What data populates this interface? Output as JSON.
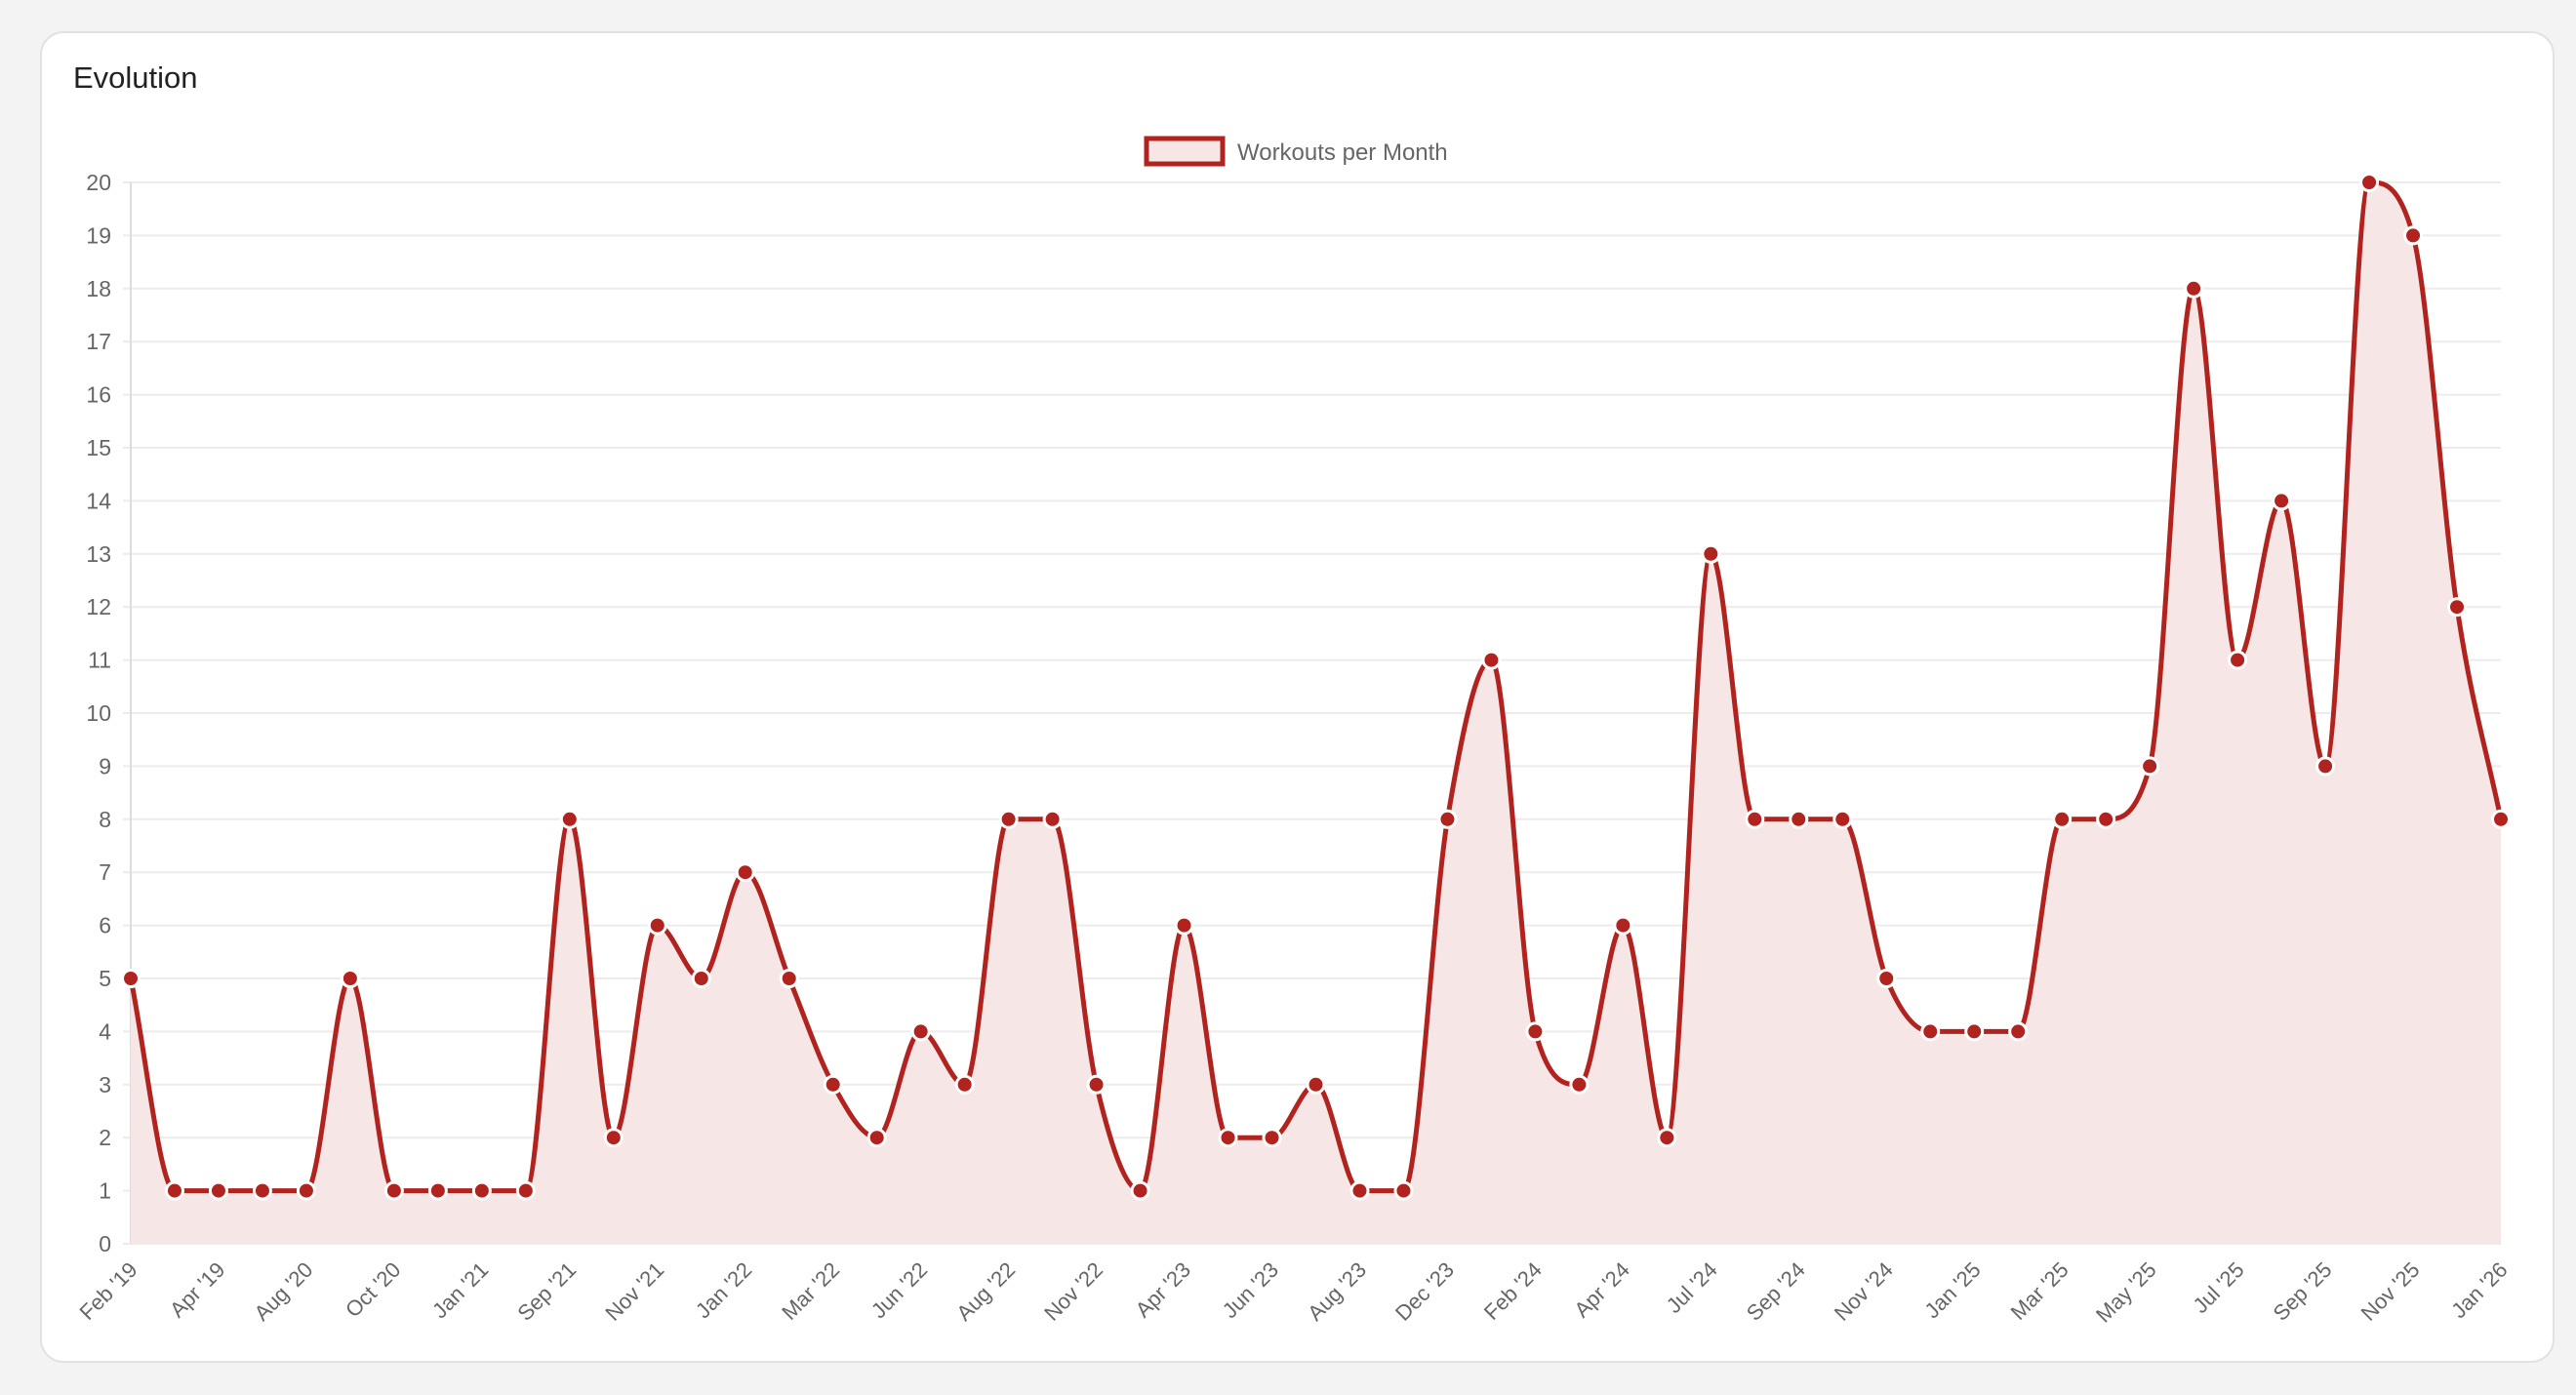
{
  "card": {
    "title": "Evolution"
  },
  "colors": {
    "line": "#b0231e",
    "fill": "#f7e6e6",
    "grid": "#ececec",
    "point_border": "#ffffff",
    "axis_text": "#666666"
  },
  "chart_data": {
    "type": "line",
    "title": "",
    "xlabel": "",
    "ylabel": "",
    "ylim": [
      0,
      20
    ],
    "legend": "top-center",
    "grid": true,
    "series": [
      {
        "name": "Workouts per Month",
        "values": [
          5,
          1,
          1,
          1,
          1,
          5,
          1,
          1,
          1,
          1,
          8,
          2,
          6,
          5,
          7,
          5,
          3,
          2,
          4,
          3,
          8,
          8,
          3,
          1,
          6,
          2,
          2,
          3,
          1,
          1,
          8,
          11,
          4,
          3,
          6,
          2,
          13,
          8,
          8,
          8,
          5,
          4,
          4,
          4,
          8,
          8,
          9,
          18,
          11,
          14,
          9,
          20,
          19,
          12,
          8
        ]
      }
    ],
    "y_ticks": [
      "0",
      "1",
      "2",
      "3",
      "4",
      "5",
      "6",
      "7",
      "8",
      "9",
      "10",
      "11",
      "12",
      "13",
      "14",
      "15",
      "16",
      "17",
      "18",
      "19",
      "20"
    ],
    "x_tick_labels": [
      "Feb '19",
      "Apr '19",
      "Aug '20",
      "Oct '20",
      "Jan '21",
      "Sep '21",
      "Nov '21",
      "Jan '22",
      "Mar '22",
      "Jun '22",
      "Aug '22",
      "Nov '22",
      "Apr '23",
      "Jun '23",
      "Aug '23",
      "Dec '23",
      "Feb '24",
      "Apr '24",
      "Jul '24",
      "Sep '24",
      "Nov '24",
      "Jan '25",
      "Mar '25",
      "May '25",
      "Jul '25",
      "Sep '25",
      "Nov '25",
      "Jan '26"
    ]
  }
}
